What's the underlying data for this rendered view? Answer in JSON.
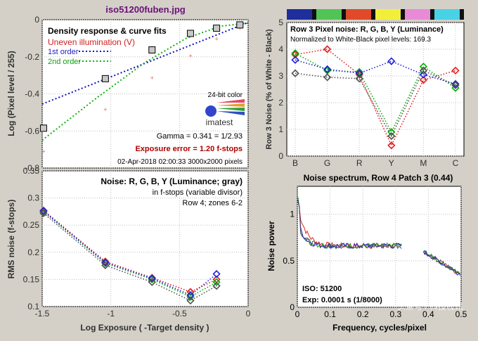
{
  "figure_title": "iso51200fuben.jpg",
  "watermark": "头条号 / 科技视讯",
  "chart_data": [
    {
      "id": "density",
      "type": "scatter",
      "title": "Density response & curve fits",
      "subtitle": "Uneven illumination (V)",
      "xlim": [
        -1.5,
        0
      ],
      "ylim": [
        -0.8,
        0
      ],
      "xticks": [
        -1.5,
        -1,
        -0.5,
        0
      ],
      "yticks": [
        0,
        -0.2,
        -0.4,
        -0.6,
        -0.8
      ],
      "ylabel": "Log (Pixel level / 255)",
      "grid": true,
      "legend": [
        "1st order",
        "2nd order"
      ],
      "squares": [
        [
          -1.49,
          -0.585
        ],
        [
          -1.04,
          -0.318
        ],
        [
          -0.7,
          -0.163
        ],
        [
          -0.42,
          -0.074
        ],
        [
          -0.23,
          -0.046
        ],
        [
          -0.06,
          -0.028
        ]
      ],
      "pink": [
        [
          -1.49,
          -0.71
        ],
        [
          -1.04,
          -0.485
        ],
        [
          -0.7,
          -0.315
        ],
        [
          -0.42,
          -0.195
        ],
        [
          -0.23,
          -0.105
        ],
        [
          -0.06,
          -0.048
        ]
      ],
      "fit1": [
        [
          -1.5,
          -0.455
        ],
        [
          0,
          -0.015
        ]
      ],
      "fit2": [
        [
          -1.5,
          -0.65
        ],
        [
          -1.1,
          -0.42
        ],
        [
          -0.75,
          -0.23
        ],
        [
          -0.45,
          -0.1
        ],
        [
          -0.2,
          -0.035
        ],
        [
          0,
          -0.018
        ]
      ],
      "logo_caption": "24-bit color",
      "logo_text": "imatest",
      "gamma": "Gamma = 0.341 = 1/2.93",
      "exposure_error": "Exposure error = 1.20 f-stops",
      "footer": "02-Apr-2018 02:00:33   3000x2000 pixels"
    },
    {
      "id": "noise-fstops",
      "type": "line",
      "title": "Noise: R, G, B, Y (Luminance; gray)",
      "subtitle": "in f-stops (variable divisor)",
      "note": "Row 4; zones 6-2",
      "xlabel": "Log Exposure ( -Target density )",
      "ylabel": "RMS noise (f-stops)",
      "xlim": [
        -1.5,
        0
      ],
      "ylim": [
        0.1,
        0.35
      ],
      "xticks": [
        -1.5,
        -1,
        -0.5,
        0
      ],
      "yticks": [
        0.35,
        0.3,
        0.25,
        0.2,
        0.15,
        0.1
      ],
      "x": [
        -1.49,
        -1.04,
        -0.7,
        -0.42,
        -0.23
      ],
      "series": [
        {
          "color": "#e02020",
          "values": [
            0.277,
            0.183,
            0.153,
            0.127,
            0.15
          ]
        },
        {
          "color": "#00b000",
          "values": [
            0.275,
            0.18,
            0.15,
            0.118,
            0.145
          ]
        },
        {
          "color": "#2020e0",
          "values": [
            0.276,
            0.181,
            0.152,
            0.121,
            0.16
          ]
        },
        {
          "color": "#505050",
          "values": [
            0.272,
            0.176,
            0.145,
            0.111,
            0.138
          ]
        }
      ]
    },
    {
      "id": "row3",
      "type": "line",
      "title": "Row 3 Pixel noise: R, G, B, Y (Luminance)",
      "subtitle": "Normalized to White-Black pixel levels: 169.3",
      "ylabel": "Row 3 Noise (% of White - Black)",
      "categories": [
        "B",
        "G",
        "R",
        "Y",
        "M",
        "C"
      ],
      "ylim": [
        0,
        5
      ],
      "yticks": [
        0,
        1,
        2,
        3,
        4,
        5
      ],
      "colorbar": [
        "#1e2f9c",
        "#52c457",
        "#e04a2a",
        "#f2ef3a",
        "#e98ad6",
        "#48d2e6"
      ],
      "series": [
        {
          "color": "#e02020",
          "values": [
            3.8,
            4.0,
            3.05,
            0.4,
            2.85,
            3.2
          ]
        },
        {
          "color": "#00b000",
          "values": [
            3.85,
            3.2,
            3.15,
            0.9,
            3.35,
            2.55
          ]
        },
        {
          "color": "#2020e0",
          "values": [
            3.6,
            3.25,
            3.1,
            3.55,
            3.05,
            2.7
          ]
        },
        {
          "color": "#505050",
          "values": [
            3.1,
            2.95,
            2.9,
            0.75,
            3.2,
            2.65
          ]
        }
      ]
    },
    {
      "id": "spectrum",
      "type": "line",
      "title": "Noise spectrum, Row 4 Patch 3 (0.44)",
      "xlabel": "Frequency, cycles/pixel",
      "ylabel": "Noise power",
      "xlim": [
        0,
        0.5
      ],
      "ylim": [
        0,
        1.3
      ],
      "xticks": [
        0,
        0.1,
        0.2,
        0.3,
        0.4,
        0.5
      ],
      "yticks": [
        0,
        0.5,
        1
      ],
      "iso": "ISO:   51200",
      "exp": "Exp:   0.0001 s   (1/8000)"
    }
  ]
}
